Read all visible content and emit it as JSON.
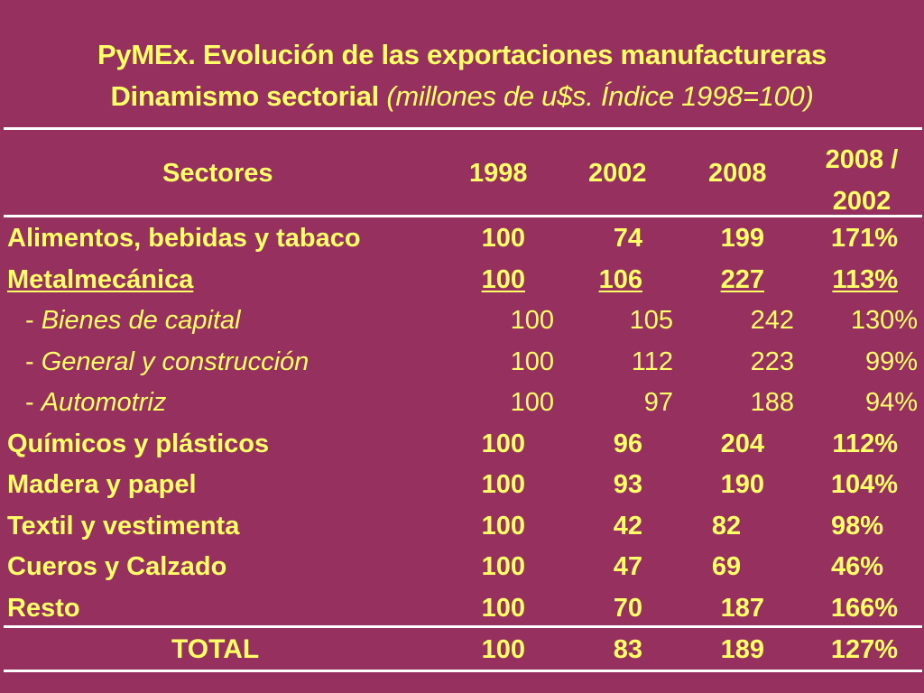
{
  "title": {
    "line1": "PyMEx. Evolución de las exportaciones manufactureras",
    "line2_bold": "Dinamismo sectorial",
    "line2_italic": "(millones de u$s. Índice 1998=100)"
  },
  "table": {
    "headers": {
      "sectores": "Sectores",
      "y1998": "1998",
      "y2002": "2002",
      "y2008": "2008",
      "ratio_line1": "2008 /",
      "ratio_line2": "2002"
    },
    "rows": [
      {
        "label": "Alimentos, bebidas y tabaco",
        "v1998": "100",
        "v2002": "74",
        "v2008": "199",
        "ratio": "171%"
      },
      {
        "label": "Metalmecánica",
        "v1998": "100",
        "v2002": "106",
        "v2008": "227",
        "ratio": "113%"
      },
      {
        "prefix": "- ",
        "label": "Bienes de capital",
        "v1998": "100",
        "v2002": "105",
        "v2008": "242",
        "ratio": "130%"
      },
      {
        "prefix": "- ",
        "label": "General y construcción",
        "v1998": "100",
        "v2002": "112",
        "v2008": "223",
        "ratio": "99%"
      },
      {
        "prefix": "- ",
        "label": "Automotriz",
        "v1998": "100",
        "v2002": "97",
        "v2008": "188",
        "ratio": "94%"
      },
      {
        "label": "Químicos y plásticos",
        "v1998": "100",
        "v2002": "96",
        "v2008": "204",
        "ratio": "112%"
      },
      {
        "label": "Madera y papel",
        "v1998": "100",
        "v2002": "93",
        "v2008": "190",
        "ratio": "104%"
      },
      {
        "label": "Textil y vestimenta",
        "v1998": "100",
        "v2002": "42",
        "v2008": "82",
        "ratio": "98%"
      },
      {
        "label": "Cueros y Calzado",
        "v1998": "100",
        "v2002": "47",
        "v2008": "69",
        "ratio": "46%"
      },
      {
        "label": "Resto",
        "v1998": "100",
        "v2002": "70",
        "v2008": "187",
        "ratio": "166%"
      },
      {
        "label": "TOTAL",
        "v1998": "100",
        "v2002": "83",
        "v2008": "189",
        "ratio": "127%"
      }
    ]
  },
  "colors": {
    "background": "#96305f",
    "text": "#ffff66",
    "rule": "#ffffff"
  }
}
